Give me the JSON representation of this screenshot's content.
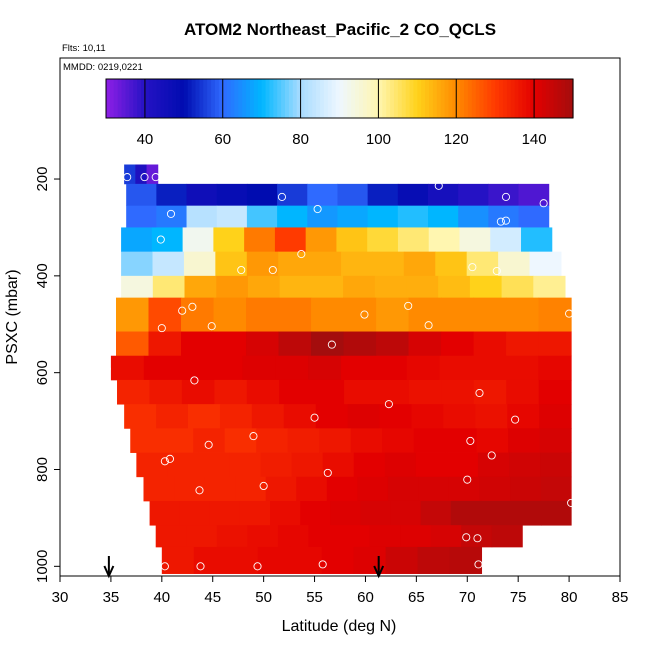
{
  "chart_data": {
    "type": "heatmap",
    "title": "ATOM2 Northeast_Pacific_2 CO_QCLS",
    "subtitle_flights": "Flts: 10,11",
    "subtitle_dates": "MMDD: 0219,0221",
    "xlabel": "Latitude (deg N)",
    "ylabel": "PSXC (mbar)",
    "xlim": [
      30,
      85
    ],
    "ylim": [
      1020,
      -50
    ],
    "xticks": [
      "30",
      "35",
      "40",
      "45",
      "50",
      "55",
      "60",
      "65",
      "70",
      "75",
      "80",
      "85"
    ],
    "xtick_values": [
      30,
      35,
      40,
      45,
      50,
      55,
      60,
      65,
      70,
      75,
      80,
      85
    ],
    "yticks": [
      "200",
      "400",
      "600",
      "800",
      "1000"
    ],
    "ytick_values": [
      200,
      400,
      600,
      800,
      1000
    ],
    "colorbar": {
      "min": 30,
      "max": 150,
      "ticks": [
        "40",
        "60",
        "80",
        "100",
        "120",
        "140"
      ],
      "tick_values": [
        40,
        60,
        80,
        100,
        120,
        140
      ],
      "stops": [
        {
          "v": 30,
          "c": "#8f1fe6"
        },
        {
          "v": 40,
          "c": "#2512c4"
        },
        {
          "v": 50,
          "c": "#000cb0"
        },
        {
          "v": 60,
          "c": "#2f6aff"
        },
        {
          "v": 70,
          "c": "#00b6ff"
        },
        {
          "v": 80,
          "c": "#a9dcff"
        },
        {
          "v": 90,
          "c": "#eef7ff"
        },
        {
          "v": 100,
          "c": "#fff6b0"
        },
        {
          "v": 110,
          "c": "#ffd21a"
        },
        {
          "v": 120,
          "c": "#ff8a00"
        },
        {
          "v": 130,
          "c": "#ff3a00"
        },
        {
          "v": 140,
          "c": "#e30000"
        },
        {
          "v": 150,
          "c": "#a40d0d"
        }
      ]
    },
    "bands": [
      {
        "p1": 170,
        "p2": 210,
        "lat0": 36.3,
        "lat1": 39.6,
        "vals": [
          55,
          42,
          34
        ]
      },
      {
        "p1": 210,
        "p2": 255,
        "lat0": 36.5,
        "lat1": 78.0,
        "vals": [
          58,
          52,
          46,
          48,
          50,
          55,
          60,
          58,
          52,
          48,
          44,
          40,
          38,
          36
        ]
      },
      {
        "p1": 255,
        "p2": 300,
        "lat0": 36.5,
        "lat1": 78.0,
        "vals": [
          60,
          62,
          82,
          84,
          74,
          70,
          66,
          68,
          70,
          72,
          70,
          65,
          62,
          60
        ]
      },
      {
        "p1": 300,
        "p2": 350,
        "lat0": 36.0,
        "lat1": 78.3,
        "vals": [
          68,
          70,
          92,
          110,
          122,
          130,
          118,
          112,
          108,
          104,
          100,
          94,
          86,
          72
        ]
      },
      {
        "p1": 350,
        "p2": 400,
        "lat0": 36.0,
        "lat1": 79.2,
        "vals": [
          78,
          84,
          96,
          112,
          118,
          116,
          116,
          114,
          114,
          116,
          112,
          104,
          96,
          90
        ]
      },
      {
        "p1": 400,
        "p2": 445,
        "lat0": 36.0,
        "lat1": 79.6,
        "vals": [
          94,
          104,
          116,
          118,
          116,
          114,
          114,
          116,
          115,
          115,
          113,
          110,
          106,
          102
        ]
      },
      {
        "p1": 445,
        "p2": 515,
        "lat0": 35.5,
        "lat1": 80.2,
        "vals": [
          118,
          128,
          122,
          120,
          122,
          122,
          120,
          120,
          118,
          120,
          120,
          120,
          120,
          121
        ]
      },
      {
        "p1": 515,
        "p2": 565,
        "lat0": 35.5,
        "lat1": 80.2,
        "vals": [
          126,
          136,
          140,
          140,
          142,
          146,
          150,
          148,
          146,
          142,
          140,
          138,
          136,
          136
        ]
      },
      {
        "p1": 565,
        "p2": 615,
        "lat0": 35.0,
        "lat1": 80.2,
        "vals": [
          138,
          140,
          140,
          140,
          141,
          141,
          142,
          140,
          140,
          139,
          138,
          138,
          138,
          139
        ]
      },
      {
        "p1": 615,
        "p2": 665,
        "lat0": 35.6,
        "lat1": 80.2,
        "vals": [
          134,
          136,
          138,
          136,
          138,
          140,
          140,
          138,
          138,
          137,
          137,
          136,
          138,
          140
        ]
      },
      {
        "p1": 665,
        "p2": 715,
        "lat0": 36.3,
        "lat1": 80.2,
        "vals": [
          132,
          134,
          132,
          134,
          136,
          138,
          140,
          141,
          140,
          139,
          138,
          137,
          139,
          141
        ]
      },
      {
        "p1": 715,
        "p2": 765,
        "lat0": 36.9,
        "lat1": 80.2,
        "vals": [
          132,
          132,
          134,
          132,
          134,
          135,
          136,
          138,
          139,
          140,
          140,
          139,
          141,
          142
        ]
      },
      {
        "p1": 765,
        "p2": 815,
        "lat0": 37.5,
        "lat1": 80.2,
        "vals": [
          134,
          134,
          134,
          134,
          135,
          136,
          138,
          140,
          141,
          140,
          140,
          142,
          143,
          144
        ]
      },
      {
        "p1": 815,
        "p2": 865,
        "lat0": 38.2,
        "lat1": 80.2,
        "vals": [
          134,
          134,
          134,
          134,
          136,
          138,
          140,
          141,
          142,
          142,
          142,
          143,
          144,
          145
        ]
      },
      {
        "p1": 865,
        "p2": 915,
        "lat0": 38.8,
        "lat1": 80.2,
        "vals": [
          136,
          136,
          136,
          136,
          138,
          140,
          141,
          142,
          142,
          145,
          148,
          148,
          148,
          148
        ]
      },
      {
        "p1": 915,
        "p2": 960,
        "lat0": 39.4,
        "lat1": 75.4,
        "vals": [
          136,
          136,
          137,
          138,
          139,
          140,
          140,
          141,
          141,
          142,
          145,
          146
        ]
      },
      {
        "p1": 960,
        "p2": 1015,
        "lat0": 40.0,
        "lat1": 71.4,
        "vals": [
          136,
          138,
          138,
          139,
          139,
          140,
          141,
          144,
          146,
          147
        ]
      }
    ],
    "points": [
      [
        36.6,
        196
      ],
      [
        38.3,
        196
      ],
      [
        39.4,
        196
      ],
      [
        51.8,
        237
      ],
      [
        55.3,
        262
      ],
      [
        67.2,
        214
      ],
      [
        73.8,
        237
      ],
      [
        77.5,
        250
      ],
      [
        40.9,
        272
      ],
      [
        73.3,
        288
      ],
      [
        73.8,
        286
      ],
      [
        39.9,
        325
      ],
      [
        53.7,
        355
      ],
      [
        47.8,
        388
      ],
      [
        50.9,
        388
      ],
      [
        70.5,
        382
      ],
      [
        72.9,
        390
      ],
      [
        42.0,
        472
      ],
      [
        43.0,
        464
      ],
      [
        44.9,
        504
      ],
      [
        59.9,
        480
      ],
      [
        64.2,
        462
      ],
      [
        66.2,
        502
      ],
      [
        80.0,
        478
      ],
      [
        40.0,
        508
      ],
      [
        56.7,
        542
      ],
      [
        34.6,
        592
      ],
      [
        43.2,
        616
      ],
      [
        62.3,
        665
      ],
      [
        71.2,
        642
      ],
      [
        55.0,
        693
      ],
      [
        74.7,
        697
      ],
      [
        49.0,
        731
      ],
      [
        44.6,
        749
      ],
      [
        70.3,
        741
      ],
      [
        72.4,
        771
      ],
      [
        40.3,
        783
      ],
      [
        40.8,
        778
      ],
      [
        56.3,
        807
      ],
      [
        70.0,
        821
      ],
      [
        43.7,
        843
      ],
      [
        50.0,
        834
      ],
      [
        80.2,
        869
      ],
      [
        69.9,
        940
      ],
      [
        71.0,
        942
      ],
      [
        40.3,
        1000
      ],
      [
        43.8,
        1000
      ],
      [
        49.4,
        1000
      ],
      [
        55.8,
        996
      ],
      [
        71.1,
        996
      ]
    ],
    "arrows_lat": [
      34.8,
      61.3
    ]
  }
}
